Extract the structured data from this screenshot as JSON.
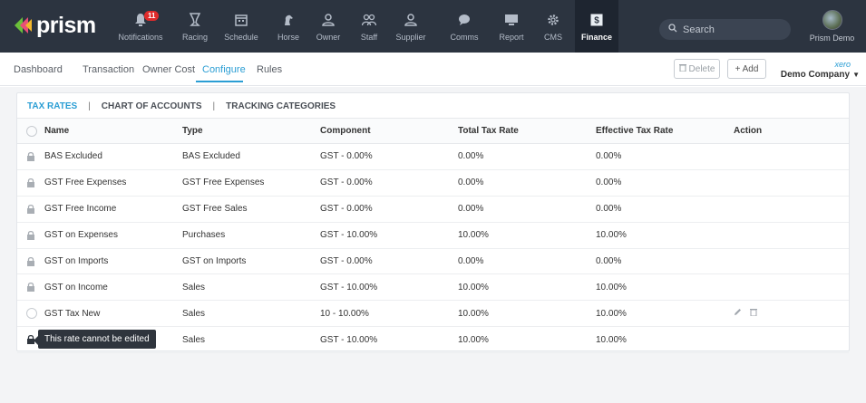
{
  "app": {
    "logo_text": "prism"
  },
  "nav": {
    "items": [
      {
        "label": "Notifications",
        "icon": "bell-icon",
        "badge": "11"
      },
      {
        "label": "Racing",
        "icon": "trophy-icon"
      },
      {
        "label": "Schedule",
        "icon": "calendar-icon"
      },
      {
        "label": "Horse",
        "icon": "horse-icon"
      },
      {
        "label": "Owner",
        "icon": "person-icon"
      },
      {
        "label": "Staff",
        "icon": "people-icon"
      },
      {
        "label": "Supplier",
        "icon": "supplier-icon"
      },
      {
        "label": "Comms",
        "icon": "chat-icon"
      },
      {
        "label": "Report",
        "icon": "report-icon"
      },
      {
        "label": "CMS",
        "icon": "gear-icon"
      },
      {
        "label": "Finance",
        "icon": "dollar-icon",
        "active": true
      }
    ],
    "search_placeholder": "Search",
    "user_name": "Prism Demo"
  },
  "subnav": {
    "tabs": [
      "Dashboard",
      "Transaction",
      "Owner Cost",
      "Configure",
      "Rules"
    ],
    "active": "Configure",
    "delete_label": "Delete",
    "add_label": "+ Add",
    "xero_label": "xero",
    "company_label": "Demo Company"
  },
  "tabs": {
    "items": [
      "TAX RATES",
      "CHART OF ACCOUNTS",
      "TRACKING CATEGORIES"
    ],
    "separator": "|",
    "active": "TAX RATES"
  },
  "table": {
    "headers": [
      "Name",
      "Type",
      "Component",
      "Total Tax Rate",
      "Effective Tax Rate",
      "Action"
    ],
    "rows": [
      {
        "locked": true,
        "name": "BAS Excluded",
        "type": "BAS Excluded",
        "component": "GST - 0.00%",
        "total": "0.00%",
        "effective": "0.00%"
      },
      {
        "locked": true,
        "name": "GST Free Expenses",
        "type": "GST Free Expenses",
        "component": "GST - 0.00%",
        "total": "0.00%",
        "effective": "0.00%"
      },
      {
        "locked": true,
        "name": "GST Free Income",
        "type": "GST Free Sales",
        "component": "GST - 0.00%",
        "total": "0.00%",
        "effective": "0.00%"
      },
      {
        "locked": true,
        "name": "GST on Expenses",
        "type": "Purchases",
        "component": "GST - 10.00%",
        "total": "10.00%",
        "effective": "10.00%"
      },
      {
        "locked": true,
        "name": "GST on Imports",
        "type": "GST on Imports",
        "component": "GST - 0.00%",
        "total": "0.00%",
        "effective": "0.00%"
      },
      {
        "locked": true,
        "name": "GST on Income",
        "type": "Sales",
        "component": "GST - 10.00%",
        "total": "10.00%",
        "effective": "10.00%"
      },
      {
        "locked": false,
        "name": "GST Tax New",
        "type": "Sales",
        "component": "10 - 10.00%",
        "total": "10.00%",
        "effective": "10.00%",
        "actions": true
      },
      {
        "locked": true,
        "name": "",
        "type": "Sales",
        "component": "GST - 10.00%",
        "total": "10.00%",
        "effective": "10.00%"
      }
    ]
  },
  "tooltip": "This rate cannot be edited",
  "colors": {
    "nav_bg": "#2c3440",
    "accent": "#2b9ed4",
    "badge": "#e02b2b"
  }
}
